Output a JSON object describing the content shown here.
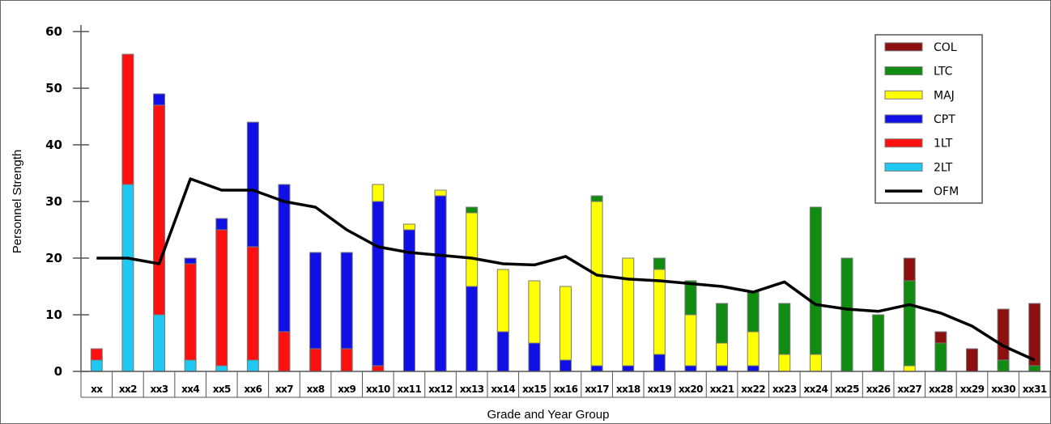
{
  "chart_data": {
    "type": "bar",
    "stacked": true,
    "title": "",
    "xlabel": "Grade and Year Group",
    "ylabel": "Personnel Strength",
    "ylim": [
      0,
      60
    ],
    "yticks": [
      0,
      10,
      20,
      30,
      40,
      50,
      60
    ],
    "grid": false,
    "legend_position": "top-right",
    "categories": [
      "xx",
      "xx2",
      "xx3",
      "xx4",
      "xx5",
      "xx6",
      "xx7",
      "xx8",
      "xx9",
      "xx10",
      "xx11",
      "xx12",
      "xx13",
      "xx14",
      "xx15",
      "xx16",
      "xx17",
      "xx18",
      "xx19",
      "xx20",
      "xx21",
      "xx22",
      "xx23",
      "xx24",
      "xx25",
      "xx26",
      "xx27",
      "xx28",
      "xx29",
      "xx30",
      "xx31"
    ],
    "series": [
      {
        "name": "2LT",
        "color": "#1ec8f0",
        "values": [
          2,
          33,
          10,
          2,
          1,
          2,
          0,
          0,
          0,
          0,
          0,
          0,
          0,
          0,
          0,
          0,
          0,
          0,
          0,
          0,
          0,
          0,
          0,
          0,
          0,
          0,
          0,
          0,
          0,
          0,
          0
        ]
      },
      {
        "name": "1LT",
        "color": "#ff1010",
        "values": [
          2,
          23,
          37,
          17,
          24,
          20,
          7,
          4,
          4,
          1,
          0,
          0,
          0,
          0,
          0,
          0,
          0,
          0,
          0,
          0,
          0,
          0,
          0,
          0,
          0,
          0,
          0,
          0,
          0,
          0,
          0
        ]
      },
      {
        "name": "CPT",
        "color": "#1010e6",
        "values": [
          0,
          0,
          2,
          1,
          2,
          22,
          26,
          17,
          17,
          29,
          25,
          31,
          15,
          7,
          5,
          2,
          1,
          1,
          3,
          1,
          1,
          1,
          0,
          0,
          0,
          0,
          0,
          0,
          0,
          0,
          0
        ]
      },
      {
        "name": "MAJ",
        "color": "#ffff00",
        "values": [
          0,
          0,
          0,
          0,
          0,
          0,
          0,
          0,
          0,
          3,
          1,
          1,
          13,
          11,
          11,
          13,
          29,
          19,
          15,
          9,
          4,
          6,
          3,
          3,
          0,
          0,
          1,
          0,
          0,
          0,
          0
        ]
      },
      {
        "name": "LTC",
        "color": "#108c10",
        "values": [
          0,
          0,
          0,
          0,
          0,
          0,
          0,
          0,
          0,
          0,
          0,
          0,
          1,
          0,
          0,
          0,
          1,
          0,
          2,
          6,
          7,
          7,
          9,
          26,
          20,
          10,
          15,
          5,
          0,
          2,
          1
        ]
      },
      {
        "name": "COL",
        "color": "#8c1010",
        "values": [
          0,
          0,
          0,
          0,
          0,
          0,
          0,
          0,
          0,
          0,
          0,
          0,
          0,
          0,
          0,
          0,
          0,
          0,
          0,
          0,
          0,
          0,
          0,
          0,
          0,
          0,
          4,
          2,
          4,
          9,
          11
        ]
      }
    ],
    "line_series": {
      "name": "OFM",
      "color": "#000000",
      "values": [
        20,
        20,
        19,
        34,
        32,
        32,
        30,
        29,
        25,
        22,
        21,
        20.5,
        20,
        19,
        18.8,
        20.3,
        17,
        16.3,
        16,
        15.5,
        15,
        14,
        15.8,
        11.8,
        11,
        10.6,
        11.8,
        10.3,
        8,
        4.5,
        2
      ]
    },
    "legend_order": [
      "COL",
      "LTC",
      "MAJ",
      "CPT",
      "1LT",
      "2LT",
      "OFM"
    ]
  }
}
